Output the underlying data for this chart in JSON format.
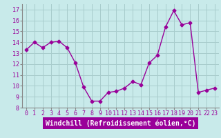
{
  "x": [
    0,
    1,
    2,
    3,
    4,
    5,
    6,
    7,
    8,
    9,
    10,
    11,
    12,
    13,
    14,
    15,
    16,
    17,
    18,
    19,
    20,
    21,
    22,
    23
  ],
  "y": [
    13.3,
    14.0,
    13.5,
    14.0,
    14.1,
    13.5,
    12.1,
    9.9,
    8.6,
    8.6,
    9.4,
    9.5,
    9.8,
    10.4,
    10.1,
    12.1,
    12.8,
    15.4,
    16.9,
    15.6,
    15.8,
    9.4,
    9.6,
    9.8
  ],
  "line_color": "#990099",
  "marker": "D",
  "marker_size": 2.5,
  "line_width": 1.0,
  "bg_color": "#c8eaea",
  "grid_color": "#a8cccc",
  "xlabel": "Windchill (Refroidissement éolien,°C)",
  "xlim": [
    -0.5,
    23.5
  ],
  "ylim": [
    8,
    17.5
  ],
  "yticks": [
    8,
    9,
    10,
    11,
    12,
    13,
    14,
    15,
    16,
    17
  ],
  "xticks": [
    0,
    1,
    2,
    3,
    4,
    5,
    6,
    7,
    8,
    9,
    10,
    11,
    12,
    13,
    14,
    15,
    16,
    17,
    18,
    19,
    20,
    21,
    22,
    23
  ],
  "tick_fontsize": 6,
  "xlabel_fontsize": 7,
  "xlabel_color": "#ffffff",
  "xlabel_bg": "#990099",
  "axes_bg": "#c8eaea"
}
